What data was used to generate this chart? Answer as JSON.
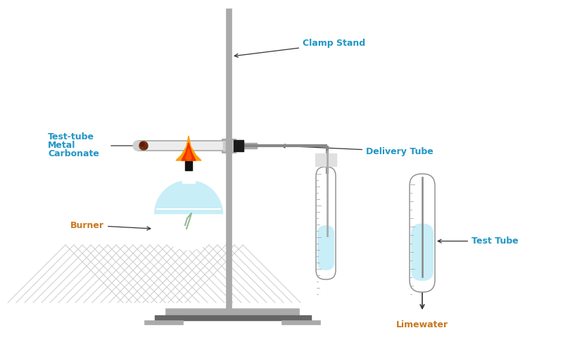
{
  "bg_color": "#ffffff",
  "label_color": "#2196c4",
  "label_color_orange": "#c87820",
  "stand_color": "#aaaaaa",
  "stand_dark": "#888888",
  "light_blue": "#c8eef8",
  "clamp_stand_label": "Clamp Stand",
  "delivery_tube_label": "Delivery Tube",
  "tt_label1": "Test-tube",
  "tt_label2": "Metal",
  "tt_label3": "Carbonate",
  "burner_label": "Burner",
  "test_tube_label": "Test Tube",
  "limewater_label": "Limewater"
}
